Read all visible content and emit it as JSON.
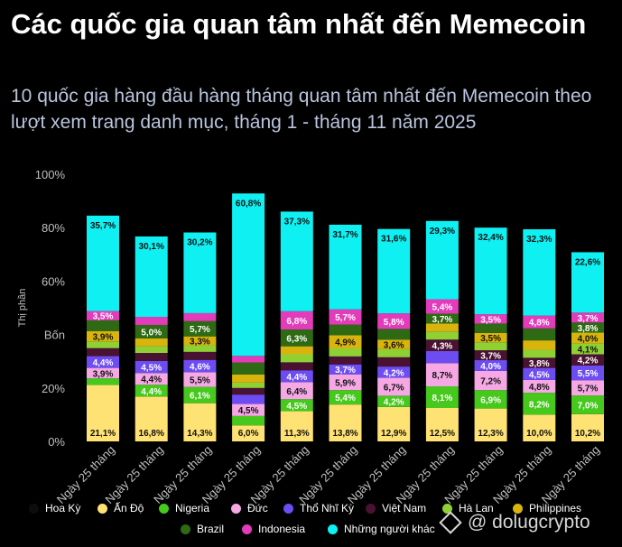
{
  "header": {
    "title": "Các quốc gia quan tâm nhất đến Memecoin",
    "subtitle": "10 quốc gia hàng đầu hàng tháng quan tâm nhất đến Memecoin theo lượt xem trang danh mục, tháng 1 - tháng 11 năm 2025"
  },
  "watermark": {
    "text": "@ dolugcrypto"
  },
  "colors": {
    "background": "#000000",
    "Hoa Kỳ": "#0d0d0d",
    "Ấn Độ": "#ffe273",
    "Nigeria": "#46c81c",
    "Đức": "#f5a8e4",
    "Thổ Nhĩ Kỳ": "#6d4df2",
    "Việt Nam": "#4a1232",
    "Hà Lan": "#8fd135",
    "Philippines": "#d8b40c",
    "Brazil": "#2e6a14",
    "Indonesia": "#e23cba",
    "Những người khác": "#0ff0f2"
  },
  "chart_data": {
    "type": "bar",
    "stacked": true,
    "title": "Các quốc gia quan tâm nhất đến Memecoin",
    "ylabel": "Thị phần",
    "ylim": [
      0,
      100
    ],
    "y_ticks": [
      "0%",
      "20%",
      "Bốn",
      "60%",
      "80%",
      "100%"
    ],
    "categories": [
      "Ngày 25 tháng",
      "Ngày 25 tháng",
      "Ngày 25 tháng",
      "Ngày 25 tháng",
      "Ngày 25 tháng",
      "Ngày 25 tháng",
      "Ngày 25 tháng",
      "Ngày 25 tháng",
      "Ngày 25 tháng",
      "Ngày 25 tháng",
      "Ngày 25 tháng"
    ],
    "series": [
      {
        "name": "Hoa Kỳ",
        "values": [
          0,
          0,
          0,
          0,
          0,
          0,
          0,
          0,
          0,
          0,
          0
        ]
      },
      {
        "name": "Ấn Độ",
        "values": [
          21.1,
          16.8,
          14.3,
          6.0,
          11.3,
          13.8,
          12.9,
          12.5,
          12.3,
          10.0,
          10.2
        ],
        "labels": [
          "21,1%",
          "16,8%",
          "14,3%",
          "6,0%",
          "11,3%",
          "13,8%",
          "12,9%",
          "12,5%",
          "12,3%",
          "10,0%",
          "10,2%"
        ]
      },
      {
        "name": "Nigeria",
        "values": [
          2.5,
          4.4,
          6.1,
          3.5,
          4.5,
          5.4,
          4.2,
          8.1,
          6.9,
          8.2,
          7.0
        ],
        "labels": [
          "",
          "4,4%",
          "6,1%",
          "",
          "4,5%",
          "5,4%",
          "4,2%",
          "8,1%",
          "6,9%",
          "8,2%",
          "7,0%"
        ]
      },
      {
        "name": "Đức",
        "values": [
          3.9,
          4.4,
          5.5,
          4.5,
          6.4,
          5.9,
          6.7,
          8.7,
          7.2,
          4.8,
          5.7
        ],
        "labels": [
          "3,9%",
          "4,4%",
          "5,5%",
          "4,5%",
          "6,4%",
          "5,9%",
          "6,7%",
          "8,7%",
          "7,2%",
          "4,8%",
          "5,7%"
        ]
      },
      {
        "name": "Thổ Nhĩ Kỳ",
        "values": [
          4.4,
          4.5,
          4.6,
          3.5,
          4.4,
          3.7,
          4.2,
          4.5,
          4.0,
          4.5,
          5.5
        ],
        "labels": [
          "4,4%",
          "4,5%",
          "4,6%",
          "",
          "4,4%",
          "3,7%",
          "4,2%",
          "",
          "4,0%",
          "4,5%",
          "5,5%"
        ]
      },
      {
        "name": "Việt Nam",
        "values": [
          3.0,
          3.0,
          3.0,
          2.5,
          3.0,
          3.0,
          3.5,
          4.3,
          3.7,
          3.8,
          4.2
        ],
        "labels": [
          "",
          "",
          "",
          "",
          "",
          "",
          "",
          "4,3%",
          "3,7%",
          "3,8%",
          "4,2%"
        ]
      },
      {
        "name": "Hà Lan",
        "values": [
          2.5,
          2.5,
          2.5,
          2.0,
          3.0,
          3.0,
          3.0,
          3.0,
          3.0,
          3.0,
          4.1
        ],
        "labels": [
          "",
          "",
          "",
          "",
          "",
          "",
          "",
          "",
          "",
          "",
          "4,1%"
        ]
      },
      {
        "name": "Philippines",
        "values": [
          3.9,
          3.0,
          3.3,
          3.0,
          3.0,
          4.9,
          3.6,
          3.0,
          3.5,
          3.5,
          4.0
        ],
        "labels": [
          "3,9%",
          "",
          "3,3%",
          "",
          "",
          "4,9%",
          "3,6%",
          "",
          "3,5%",
          "",
          "4,0%"
        ]
      },
      {
        "name": "Brazil",
        "values": [
          4.0,
          5.0,
          5.7,
          4.5,
          6.3,
          4.0,
          4.0,
          3.7,
          3.5,
          4.5,
          3.8
        ],
        "labels": [
          "",
          "5,0%",
          "5,7%",
          "",
          "6,3%",
          "",
          "",
          "3,7%",
          "",
          "",
          "3,8%"
        ]
      },
      {
        "name": "Indonesia",
        "values": [
          3.5,
          3.0,
          3.0,
          2.5,
          6.8,
          5.7,
          5.8,
          5.4,
          3.5,
          4.8,
          3.7
        ],
        "labels": [
          "3,5%",
          "",
          "",
          "",
          "6,8%",
          "5,7%",
          "5,8%",
          "5,4%",
          "3,5%",
          "4,8%",
          "3,7%"
        ]
      },
      {
        "name": "Những người khác",
        "values": [
          35.7,
          30.1,
          30.2,
          60.8,
          37.3,
          31.7,
          31.6,
          29.3,
          32.4,
          32.3,
          22.6
        ],
        "labels": [
          "35,7%",
          "30,1%",
          "30,2%",
          "60,8%",
          "37,3%",
          "31,7%",
          "31,6%",
          "29,3%",
          "32,4%",
          "32,3%",
          "22,6%"
        ]
      }
    ],
    "legend": {
      "placement": "bottom",
      "entries": [
        "Hoa Kỳ",
        "Ấn Độ",
        "Nigeria",
        "Đức",
        "Thổ Nhĩ Kỳ",
        "Việt Nam",
        "Hà Lan",
        "Philippines",
        "Brazil",
        "Indonesia",
        "Những người khác"
      ]
    },
    "grid": false
  }
}
